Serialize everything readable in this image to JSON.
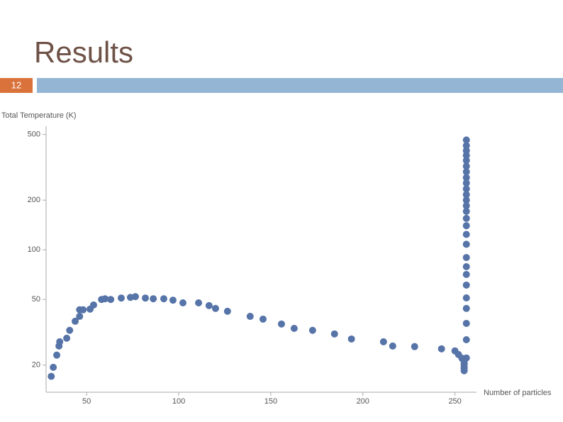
{
  "slide": {
    "title": "Results",
    "number": "12"
  },
  "chart_data": {
    "type": "scatter",
    "ylabel": "Total Temperature (K)",
    "xlabel": "Number of particles",
    "color": "#5674a8",
    "ylog": true,
    "xlim": [
      28,
      259
    ],
    "xticks": [
      50,
      100,
      150,
      200,
      250
    ],
    "ylim": [
      13.7,
      550
    ],
    "yticks": [
      20,
      50,
      100,
      200,
      500
    ],
    "x": [
      30.8,
      31.9,
      33.8,
      35,
      35.4,
      39.2,
      40.8,
      43.8,
      46.2,
      46.2,
      48.1,
      51.9,
      53.8,
      58.1,
      60,
      63.1,
      68.8,
      73.8,
      76.5,
      81.9,
      86.2,
      91.9,
      96.9,
      102.3,
      110.8,
      116.5,
      120,
      126.5,
      138.8,
      145.8,
      155.8,
      162.7,
      172.7,
      184.6,
      193.8,
      211.2,
      216.2,
      228.1,
      242.7,
      250,
      251.9,
      253.8,
      255,
      255,
      255,
      255,
      255,
      256.2,
      256.2,
      256.2,
      256.2,
      256.2,
      256.2,
      256.2,
      256.2,
      256.2,
      256.2,
      256.2,
      256.2,
      256.2,
      256.2,
      256.2,
      256.2,
      256.2,
      256.2,
      256.2,
      256.2,
      256.2,
      256.2,
      256.2,
      256.2,
      256.2,
      256.2,
      256.2
    ],
    "values": [
      17.1,
      19.4,
      23.0,
      26.1,
      27.7,
      29.1,
      32.5,
      36.9,
      39.5,
      43.3,
      43.3,
      43.7,
      46.3,
      50,
      50.5,
      50,
      51,
      51.5,
      52,
      51,
      50.5,
      50.5,
      49.5,
      47.7,
      47.7,
      45.9,
      44.1,
      42.4,
      39.5,
      38,
      35.5,
      33.4,
      32.5,
      30.9,
      28.8,
      27.7,
      26.1,
      25.9,
      25.1,
      24.4,
      23.2,
      22,
      20.6,
      20,
      19.4,
      19,
      18.5,
      22.1,
      28.5,
      35.8,
      44.1,
      51.1,
      61.1,
      70.9,
      79,
      89.8,
      108,
      124,
      140,
      155,
      171,
      185,
      200,
      216,
      234,
      254,
      274,
      297,
      321,
      348,
      373,
      399,
      428,
      463
    ]
  }
}
